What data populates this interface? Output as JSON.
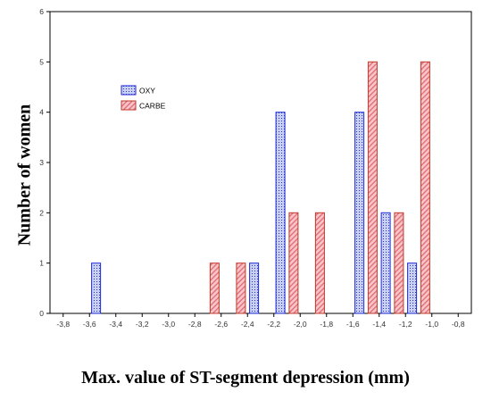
{
  "chart_data": {
    "type": "bar",
    "title": "",
    "xlabel": "Max. value of ST-segment depression (mm)",
    "ylabel": "Number of women",
    "xlim": [
      -3.9,
      -0.7
    ],
    "ylim": [
      0,
      6
    ],
    "x_ticks": [
      "-3,8",
      "-3,6",
      "-3,4",
      "-3,2",
      "-3,0",
      "-2,8",
      "-2,6",
      "-2,4",
      "-2,2",
      "-2,0",
      "-1,8",
      "-1,6",
      "-1,4",
      "-1,2",
      "-1,0",
      "-0,8"
    ],
    "x_tick_values": [
      -3.8,
      -3.6,
      -3.4,
      -3.2,
      -3.0,
      -2.8,
      -2.6,
      -2.4,
      -2.2,
      -2.0,
      -1.8,
      -1.6,
      -1.4,
      -1.2,
      -1.0,
      -0.8
    ],
    "y_ticks": [
      "0",
      "1",
      "2",
      "3",
      "4",
      "5",
      "6"
    ],
    "y_tick_values": [
      0,
      1,
      2,
      3,
      4,
      5,
      6
    ],
    "grid": false,
    "legend_position": "upper-left",
    "series": [
      {
        "name": "OXY",
        "color": "#1f2ad6",
        "fill": "#c9d0f2",
        "points": [
          {
            "x": -3.55,
            "y": 1
          },
          {
            "x": -2.35,
            "y": 1
          },
          {
            "x": -2.15,
            "y": 4
          },
          {
            "x": -1.55,
            "y": 4
          },
          {
            "x": -1.35,
            "y": 2
          },
          {
            "x": -1.15,
            "y": 1
          }
        ]
      },
      {
        "name": "CARBE",
        "color": "#c0392b",
        "fill": "#f6b8bc",
        "points": [
          {
            "x": -2.65,
            "y": 1
          },
          {
            "x": -2.45,
            "y": 1
          },
          {
            "x": -2.05,
            "y": 2
          },
          {
            "x": -1.85,
            "y": 2
          },
          {
            "x": -1.45,
            "y": 5
          },
          {
            "x": -1.25,
            "y": 2
          },
          {
            "x": -1.05,
            "y": 5
          }
        ]
      }
    ]
  }
}
